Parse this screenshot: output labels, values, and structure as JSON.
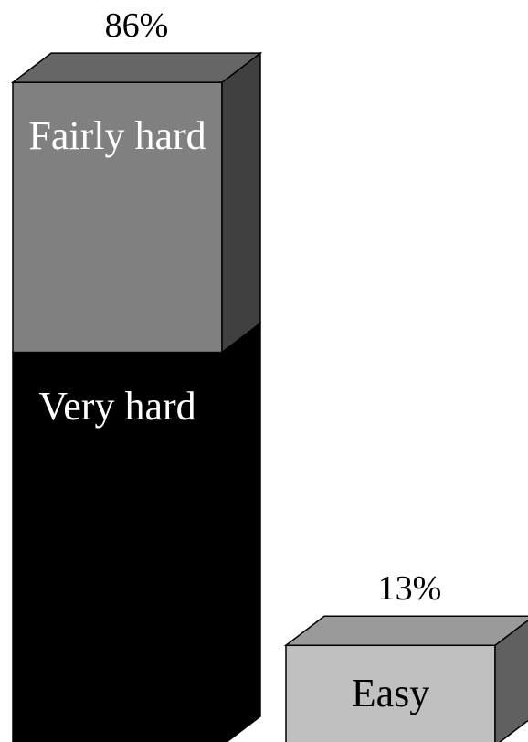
{
  "chart_data": {
    "type": "bar",
    "stacked": true,
    "three_d": true,
    "series": [
      {
        "name": "Very hard",
        "color": "#000000",
        "values": [
          51,
          null
        ]
      },
      {
        "name": "Fairly hard",
        "color": "#808080",
        "values": [
          35,
          null
        ]
      },
      {
        "name": "Easy",
        "color": "#c0c0c0",
        "values": [
          null,
          13
        ]
      }
    ],
    "totals": [
      86,
      13
    ],
    "total_labels": [
      "86%",
      "13%"
    ]
  }
}
